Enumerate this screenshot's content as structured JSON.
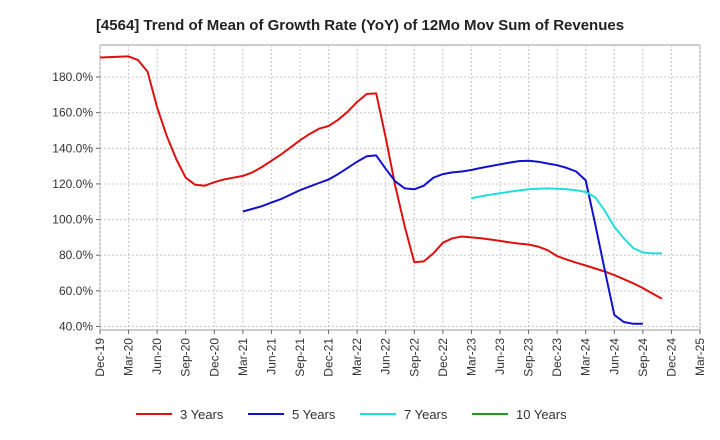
{
  "chart_data": {
    "type": "line",
    "title": "[4564]  Trend of Mean of Growth Rate (YoY) of 12Mo Mov Sum of Revenues",
    "xlabel": "",
    "ylabel": "",
    "ylim": [
      38,
      198
    ],
    "yticks": [
      40,
      60,
      80,
      100,
      120,
      140,
      160,
      180
    ],
    "ytick_labels": [
      "40.0%",
      "60.0%",
      "80.0%",
      "100.0%",
      "120.0%",
      "140.0%",
      "160.0%",
      "180.0%"
    ],
    "x_start": "Dec-19",
    "x_range_months": [
      0,
      63
    ],
    "xticks": [
      0,
      3,
      6,
      9,
      12,
      15,
      18,
      21,
      24,
      27,
      30,
      33,
      36,
      39,
      42,
      45,
      48,
      51,
      54,
      57,
      60,
      63
    ],
    "xtick_labels": [
      "Dec-19",
      "Mar-20",
      "Jun-20",
      "Sep-20",
      "Dec-20",
      "Mar-21",
      "Jun-21",
      "Sep-21",
      "Dec-21",
      "Mar-22",
      "Jun-22",
      "Sep-22",
      "Dec-22",
      "Mar-23",
      "Jun-23",
      "Sep-23",
      "Dec-23",
      "Mar-24",
      "Jun-24",
      "Sep-24",
      "Dec-24",
      "Mar-25"
    ],
    "grid": true,
    "legend_position": "bottom",
    "series": [
      {
        "name": "3 Years",
        "color": "#dd1111",
        "start_month": 0,
        "values": [
          191,
          191.2,
          191.4,
          191.6,
          189.5,
          183,
          163,
          147,
          134,
          123.5,
          119.5,
          119,
          121,
          122.5,
          123.5,
          124.5,
          126.5,
          129.5,
          133,
          136.5,
          140.5,
          144.5,
          148,
          151,
          152.5,
          156,
          160.5,
          166,
          170.5,
          170.8,
          146,
          119,
          96,
          76,
          76.5,
          81,
          87,
          89.5,
          90.5,
          90,
          89.5,
          88.8,
          88,
          87.2,
          86.5,
          86,
          84.8,
          82.8,
          79.5,
          77.5,
          75.8,
          74.2,
          72.5,
          70.8,
          68.8,
          66.5,
          64.2,
          61.5,
          58.5,
          55.5
        ]
      },
      {
        "name": "5 Years",
        "color": "#1111cc",
        "start_month": 15,
        "values": [
          104.5,
          106,
          107.5,
          109.5,
          111.5,
          114,
          116.5,
          118.5,
          120.5,
          122.5,
          125.5,
          129,
          132.5,
          135.5,
          136,
          128.5,
          121.5,
          117.5,
          117,
          119,
          123.5,
          125.5,
          126.5,
          127,
          127.8,
          129,
          130,
          131,
          132,
          132.8,
          133,
          132.5,
          131.5,
          130.5,
          129,
          127,
          122,
          97.5,
          71.5,
          46.5,
          42.5,
          41.5,
          41.5
        ]
      },
      {
        "name": "7 Years",
        "color": "#22dddd",
        "start_month": 39,
        "values": [
          112,
          113,
          114,
          114.8,
          115.6,
          116.3,
          117,
          117.3,
          117.5,
          117.3,
          117,
          116.5,
          115.5,
          112.5,
          105,
          96,
          89.5,
          84,
          81.5,
          81,
          81
        ]
      },
      {
        "name": "10 Years",
        "color": "#229922",
        "start_month": 0,
        "values": []
      }
    ]
  }
}
